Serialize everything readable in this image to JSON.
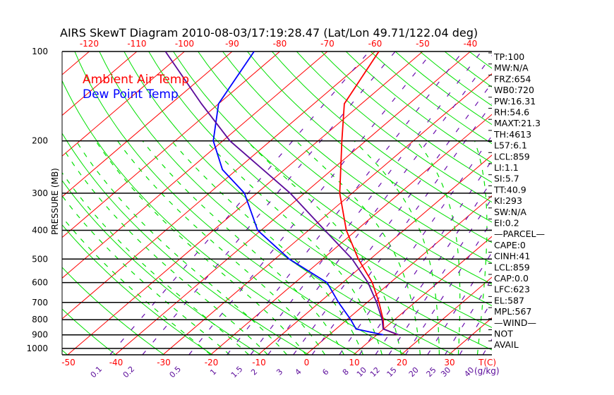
{
  "chart_data": {
    "type": "line",
    "title": "AIRS SkewT Diagram 2010-08-03/17:19:28.47 (Lat/Lon 49.71/122.04 deg)",
    "ylabel": "PRESSURE (MB)",
    "xlabel": "T(C)",
    "mixing_ratio_unit": "(g/kg)",
    "ylim": [
      1050,
      100
    ],
    "y_scale": "log",
    "pressure_ticks": [
      "100",
      "200",
      "300",
      "400",
      "500",
      "600",
      "700",
      "800",
      "900",
      "1000"
    ],
    "pressure_values": [
      100,
      200,
      300,
      400,
      500,
      600,
      700,
      800,
      900,
      1000
    ],
    "top_temp_ticks": [
      "-120",
      "-110",
      "-100",
      "-90",
      "-80",
      "-70",
      "-60",
      "-50",
      "-40"
    ],
    "top_temp_values": [
      -120,
      -110,
      -100,
      -90,
      -80,
      -70,
      -60,
      -50,
      -40
    ],
    "bottom_temp_ticks": [
      "-50",
      "-40",
      "-30",
      "-20",
      "-10",
      "0",
      "10",
      "20",
      "30"
    ],
    "bottom_temp_values": [
      -50,
      -40,
      -30,
      -20,
      -10,
      0,
      10,
      20,
      30
    ],
    "mixing_ratio_labels": [
      "0.1",
      "0.2",
      "0.5",
      "1",
      "1.5",
      "2",
      "3",
      "4",
      "6",
      "8",
      "10",
      "12",
      "15",
      "20",
      "25",
      "30",
      "40"
    ],
    "mixing_ratio_values": [
      0.1,
      0.2,
      0.5,
      1,
      1.5,
      2,
      3,
      4,
      6,
      8,
      10,
      12,
      15,
      20,
      25,
      30,
      40
    ],
    "legend": [
      {
        "label": "Ambient Air Temp",
        "color": "#ff0000"
      },
      {
        "label": "Dew Point Temp",
        "color": "#0000ff"
      }
    ],
    "series": [
      {
        "name": "Ambient Air Temp",
        "color": "#ff0000",
        "pressure": [
          100,
          150,
          200,
          300,
          400,
          500,
          600,
          700,
          800,
          860,
          900
        ],
        "values": [
          -59.2,
          -53.6,
          -45,
          -32.6,
          -22.1,
          -12.5,
          -3.8,
          2.5,
          7.6,
          10,
          14.4
        ]
      },
      {
        "name": "Dew Point Temp",
        "color": "#0000ff",
        "pressure": [
          100,
          150,
          200,
          250,
          300,
          400,
          500,
          600,
          700,
          800,
          860,
          900
        ],
        "values": [
          -85.4,
          -80,
          -72,
          -63,
          -52.6,
          -40.7,
          -27,
          -13.3,
          -6,
          0.8,
          4.2,
          11.4
        ]
      },
      {
        "name": "Parcel",
        "color": "#5a0a9a",
        "pressure": [
          100,
          150,
          200,
          300,
          400,
          500,
          600,
          700,
          800,
          860,
          900
        ],
        "values": [
          -104,
          -83.6,
          -68.5,
          -43,
          -26.6,
          -13.8,
          -4.7,
          2,
          7.4,
          9.9,
          14.6
        ]
      }
    ],
    "background": {
      "isotherm_color": "#ff0000",
      "dry_adiabat_color": "#00e000",
      "moist_adiabat_color": "#00e000",
      "mixing_ratio_color": "#6a0dad"
    }
  },
  "indices": [
    "TP:100",
    "MW:N/A",
    "FRZ:654",
    "WB0:720",
    "PW:16.31",
    "RH:54.6",
    "MAXT:21.3",
    "TH:4613",
    "L57:6.1",
    "LCL:859",
    "LI:1.1",
    "SI:5.7",
    "TT:40.9",
    "KI:293",
    "SW:N/A",
    "EI:0.2",
    "—PARCEL—",
    "CAPE:0",
    "CINH:41",
    "LCL:859",
    "CAP:0.0",
    "LFC:623",
    "EL:587",
    "MPL:567",
    "—WIND—",
    " NOT",
    "AVAIL"
  ]
}
